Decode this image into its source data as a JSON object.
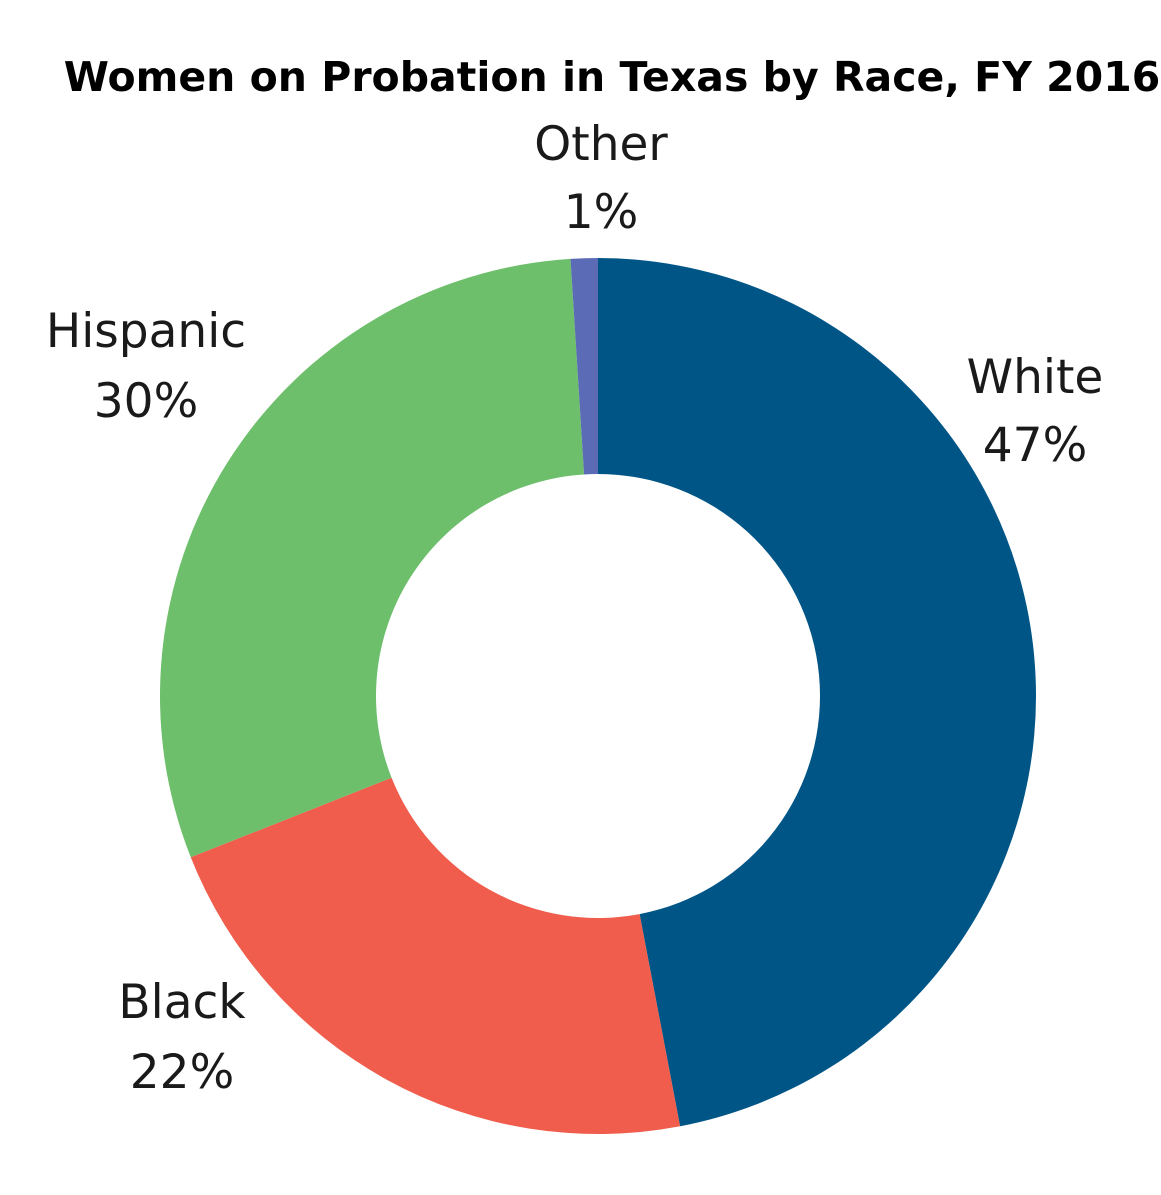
{
  "chart_data": {
    "type": "pie",
    "title": "Women on Probation in Texas by Race, FY 2016",
    "categories": [
      "White",
      "Black",
      "Hispanic",
      "Other"
    ],
    "values": [
      47,
      22,
      30,
      1
    ],
    "value_labels": [
      "47%",
      "22%",
      "30%",
      "1%"
    ],
    "colors": [
      "#005587",
      "#F05D4C",
      "#6DBF6B",
      "#5B6BB5"
    ],
    "donut": true,
    "legend": "none"
  }
}
